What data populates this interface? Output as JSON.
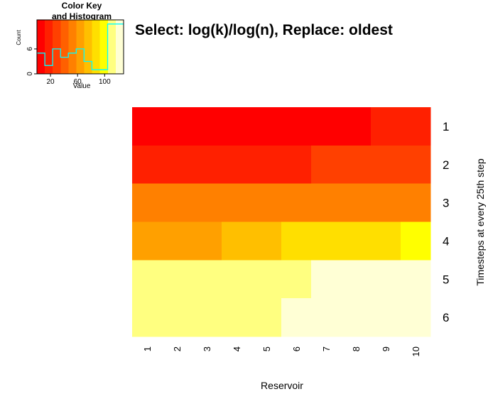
{
  "chart_data": {
    "type": "heatmap",
    "title": "Select: log(k)/log(n), Replace: oldest",
    "xlabel": "Reservoir",
    "ylabel": "Timesteps at every 25th step",
    "columns": [
      "1",
      "2",
      "3",
      "4",
      "5",
      "6",
      "7",
      "8",
      "9",
      "10"
    ],
    "rows": [
      "1",
      "2",
      "3",
      "4",
      "5",
      "6"
    ],
    "values": [
      [
        5,
        5,
        5,
        5,
        5,
        5,
        5,
        5,
        12,
        12
      ],
      [
        23,
        23,
        23,
        23,
        23,
        23,
        33,
        33,
        33,
        33
      ],
      [
        48,
        48,
        48,
        48,
        55,
        55,
        55,
        55,
        55,
        55
      ],
      [
        66,
        66,
        66,
        72,
        72,
        83,
        83,
        83,
        83,
        97
      ],
      [
        113,
        113,
        113,
        113,
        113,
        113,
        123,
        123,
        123,
        123
      ],
      [
        113,
        113,
        113,
        113,
        113,
        123,
        123,
        123,
        123,
        123
      ]
    ],
    "color_scale": [
      "#FF0000",
      "#FF2000",
      "#FF4000",
      "#FF6000",
      "#FF8000",
      "#FFA000",
      "#FFBF00",
      "#FFDF00",
      "#FFFF00",
      "#FFFF80",
      "#FFFFD5"
    ],
    "color_key": {
      "title": "Color Key\nand Histogram",
      "title_lines": [
        "Color Key",
        "and Histogram"
      ],
      "xlabel": "Value",
      "ylabel": "Count",
      "xticks": [
        "20",
        "60",
        "100"
      ],
      "xtick_values": [
        20,
        60,
        100
      ],
      "yticks": [
        "0",
        "6"
      ],
      "ytick_values": [
        0,
        6
      ],
      "xlim": [
        0,
        128
      ],
      "ylim": [
        0,
        13
      ],
      "bins": [
        0,
        5.8,
        11.6,
        17.4,
        23.2,
        29,
        34.8,
        40.6,
        46.4,
        52.2,
        58,
        63.8,
        69.6,
        75.4,
        81.2,
        87,
        92.8,
        98.6,
        104.4,
        110.2,
        116,
        121.8,
        127.6
      ],
      "counts": [
        5,
        5,
        2,
        2,
        6,
        6,
        4,
        4,
        5,
        5,
        6,
        6,
        3,
        3,
        1,
        1,
        1,
        1,
        12,
        12,
        12,
        12
      ],
      "histogram_color": "#00FFFF"
    }
  }
}
